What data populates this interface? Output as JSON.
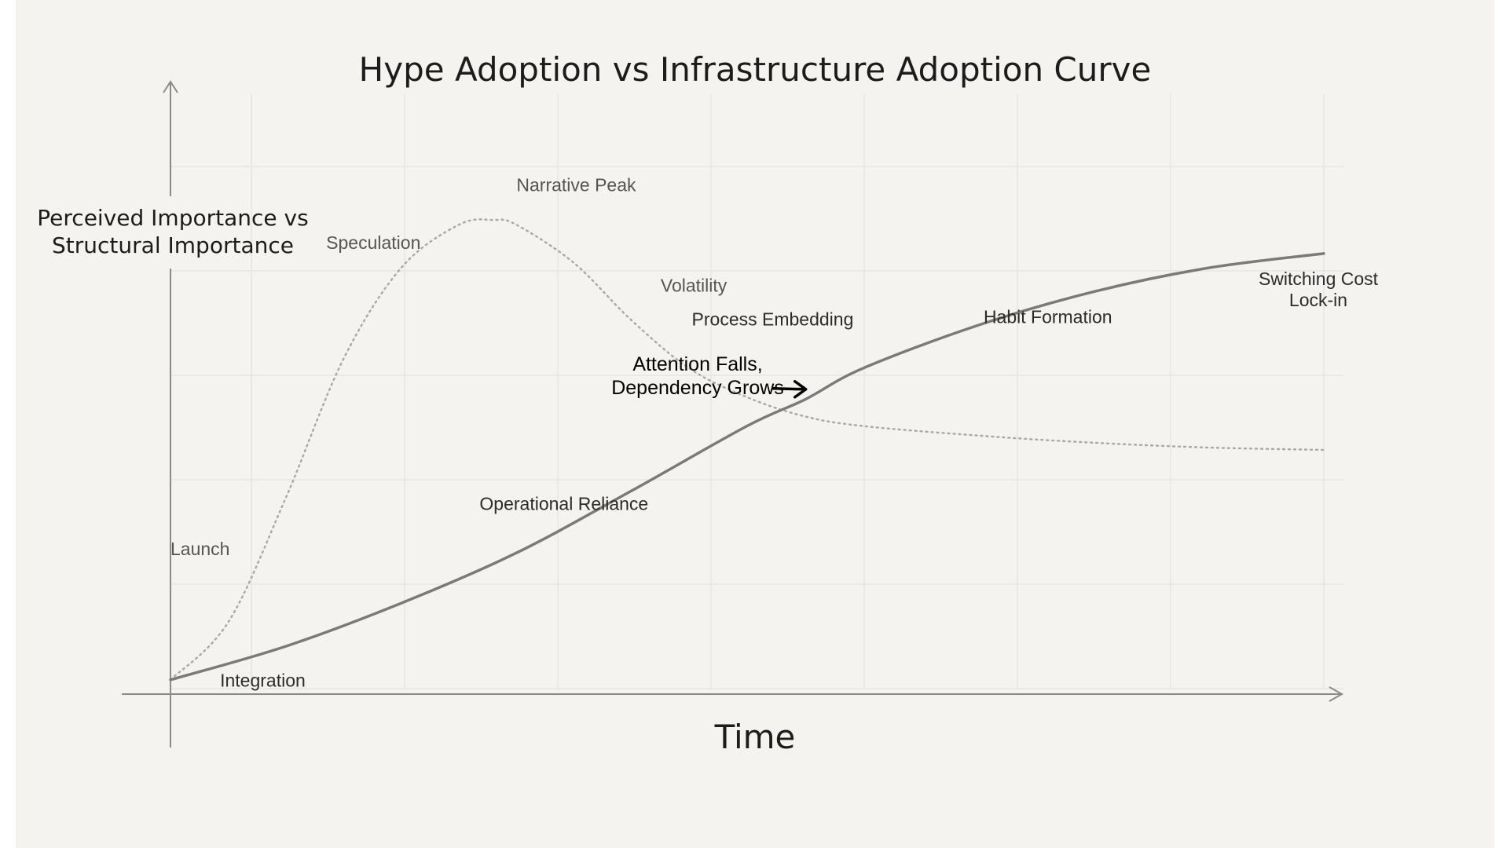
{
  "chart_data": {
    "type": "line",
    "title": "Hype Adoption vs Infrastructure Adoption Curve",
    "xlabel": "Time",
    "ylabel": "Perceived Importance vs Structural Importance",
    "ylabel_lines": [
      "Perceived Importance vs",
      "Structural Importance"
    ],
    "xlim": [
      0,
      100
    ],
    "ylim": [
      0,
      100
    ],
    "grid": true,
    "series": [
      {
        "style": "dotted",
        "color": "#a8a8a8",
        "x": [
          0,
          5,
          10,
          15,
          20,
          25,
          28,
          30,
          35,
          40,
          45,
          50,
          55,
          60,
          70,
          80,
          90,
          100
        ],
        "y": [
          2,
          14,
          40,
          69,
          88,
          97,
          98,
          97,
          89,
          77,
          67,
          61,
          57,
          55,
          53,
          51.5,
          50.5,
          50
        ]
      },
      {
        "style": "solid",
        "color": "#7a7a7a",
        "x": [
          0,
          10,
          20,
          30,
          40,
          50,
          55,
          60,
          70,
          80,
          90,
          100
        ],
        "y": [
          2,
          9,
          18,
          28.5,
          41.5,
          55,
          60.5,
          67,
          76,
          83,
          88,
          91
        ]
      }
    ],
    "annotations": [
      {
        "id": "launch",
        "text": "Launch",
        "x": 0,
        "y": 28,
        "style": "gray"
      },
      {
        "id": "speculation",
        "text": "Speculation",
        "x": 13.5,
        "y": 92,
        "style": "gray"
      },
      {
        "id": "narrative_peak",
        "text": "Narrative Peak",
        "x": 30,
        "y": 104,
        "style": "gray"
      },
      {
        "id": "volatility",
        "text": "Volatility",
        "x": 42.5,
        "y": 83,
        "style": "gray"
      },
      {
        "id": "integration",
        "text": "Integration",
        "x": 4.3,
        "y": 0.6,
        "style": "dark"
      },
      {
        "id": "operational_reliance",
        "text": "Operational Reliance",
        "x": 26.8,
        "y": 37.5,
        "style": "dark"
      },
      {
        "id": "process_embedding",
        "text": "Process Embedding",
        "x": 45.2,
        "y": 76,
        "style": "dark"
      },
      {
        "id": "habit_formation",
        "text": "Habit Formation",
        "x": 70.5,
        "y": 76.5,
        "style": "dark"
      }
    ],
    "switching_cost_lines": [
      "Switching Cost",
      "Lock-in"
    ],
    "callout_lines": [
      "Attention Falls,",
      "Dependency Grows"
    ],
    "crossover": {
      "x": 55.5,
      "y": 62.5
    }
  }
}
